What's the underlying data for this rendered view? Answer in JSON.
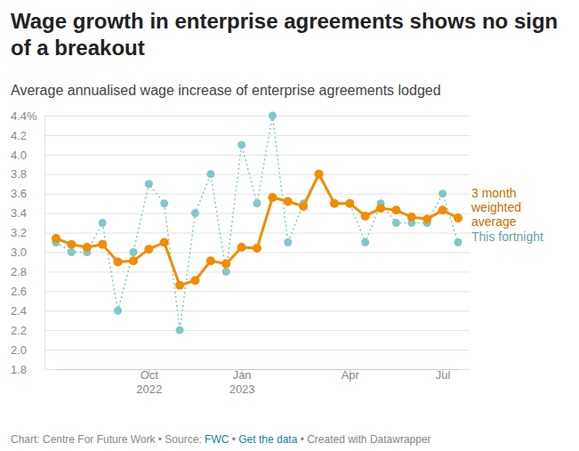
{
  "chart_data": {
    "type": "line",
    "title": "Wage growth in enterprise agreements shows no sign of a breakout",
    "subtitle": "Average annualised wage increase of enterprise agreements lodged",
    "categories": [
      null,
      null,
      null,
      null,
      null,
      null,
      "Oct 2022",
      null,
      null,
      null,
      null,
      null,
      "Jan 2023",
      null,
      null,
      null,
      null,
      null,
      null,
      "Apr",
      null,
      null,
      null,
      null,
      null,
      "Jul",
      null
    ],
    "series": [
      {
        "name": "3 month weighted average",
        "color": "#f28c00",
        "line_style": "solid",
        "marker": "circle",
        "values": [
          3.14,
          3.08,
          3.05,
          3.08,
          2.9,
          2.91,
          3.03,
          3.1,
          2.66,
          2.71,
          2.91,
          2.88,
          3.05,
          3.04,
          3.56,
          3.52,
          3.47,
          3.8,
          3.5,
          3.5,
          3.37,
          3.45,
          3.43,
          3.36,
          3.34,
          3.43,
          3.35
        ]
      },
      {
        "name": "This fortnight",
        "color": "#7fc7cb",
        "line_style": "dotted",
        "marker": "circle",
        "values": [
          3.1,
          3.0,
          3.0,
          3.3,
          2.4,
          3.0,
          3.7,
          3.5,
          2.2,
          3.4,
          3.8,
          2.8,
          4.1,
          3.5,
          4.4,
          3.1,
          3.5,
          3.8,
          3.5,
          3.5,
          3.1,
          3.5,
          3.3,
          3.3,
          3.3,
          3.6,
          3.1
        ]
      }
    ],
    "ylim": [
      1.8,
      4.4
    ],
    "yticks": [
      1.8,
      {
        "value": 2,
        "label": "2.0"
      },
      2.2,
      2.4,
      2.6,
      2.8,
      {
        "value": 3,
        "label": "3.0"
      },
      3.2,
      3.4,
      3.6,
      3.8,
      {
        "value": 4,
        "label": "4.0"
      },
      4.2,
      {
        "value": 4.4,
        "label": "4.4%"
      }
    ],
    "grid": true,
    "footer": [
      {
        "text": "Chart: Centre For Future Work • Source: ",
        "color": "#888888"
      },
      {
        "text": "FWC",
        "color": "#1d81a2"
      },
      {
        "text": " • ",
        "color": "#888888"
      },
      {
        "text": "Get the data",
        "color": "#1d81a2"
      },
      {
        "text": " • Created with Datawrapper",
        "color": "#888888"
      }
    ]
  }
}
